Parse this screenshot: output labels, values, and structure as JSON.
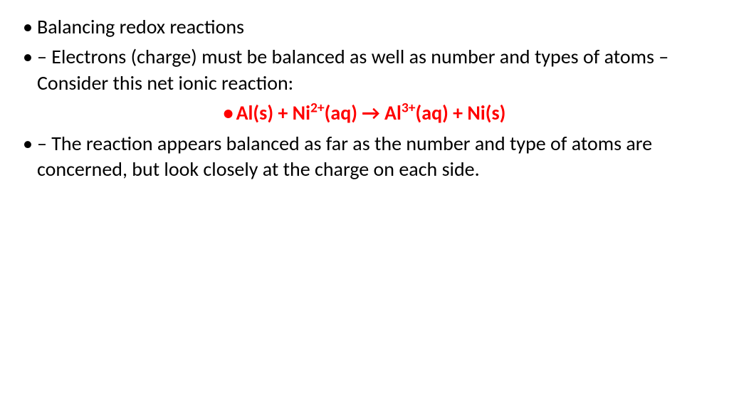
{
  "slide": {
    "bullets": [
      {
        "text": "Balancing redox reactions",
        "type": "normal"
      },
      {
        "text": " – Electrons (charge) must be balanced as well as number and types of atoms – Consider this net ionic reaction:",
        "type": "normal"
      },
      {
        "type": "equation",
        "parts": {
          "p1": "Al(s) + Ni",
          "sup1": "2+",
          "p2": "(aq) → Al",
          "sup2": "3+",
          "p3": "(aq) + Ni(s)"
        }
      },
      {
        "text": "– The reaction appears balanced as far as the number and type of atoms are concerned, but look closely at the charge on each side.",
        "type": "normal"
      }
    ],
    "colors": {
      "text": "#000000",
      "highlight": "#ff0000",
      "background": "#ffffff"
    },
    "font": {
      "family": "Calibri",
      "size_pt": 28,
      "equation_weight": "bold"
    }
  }
}
